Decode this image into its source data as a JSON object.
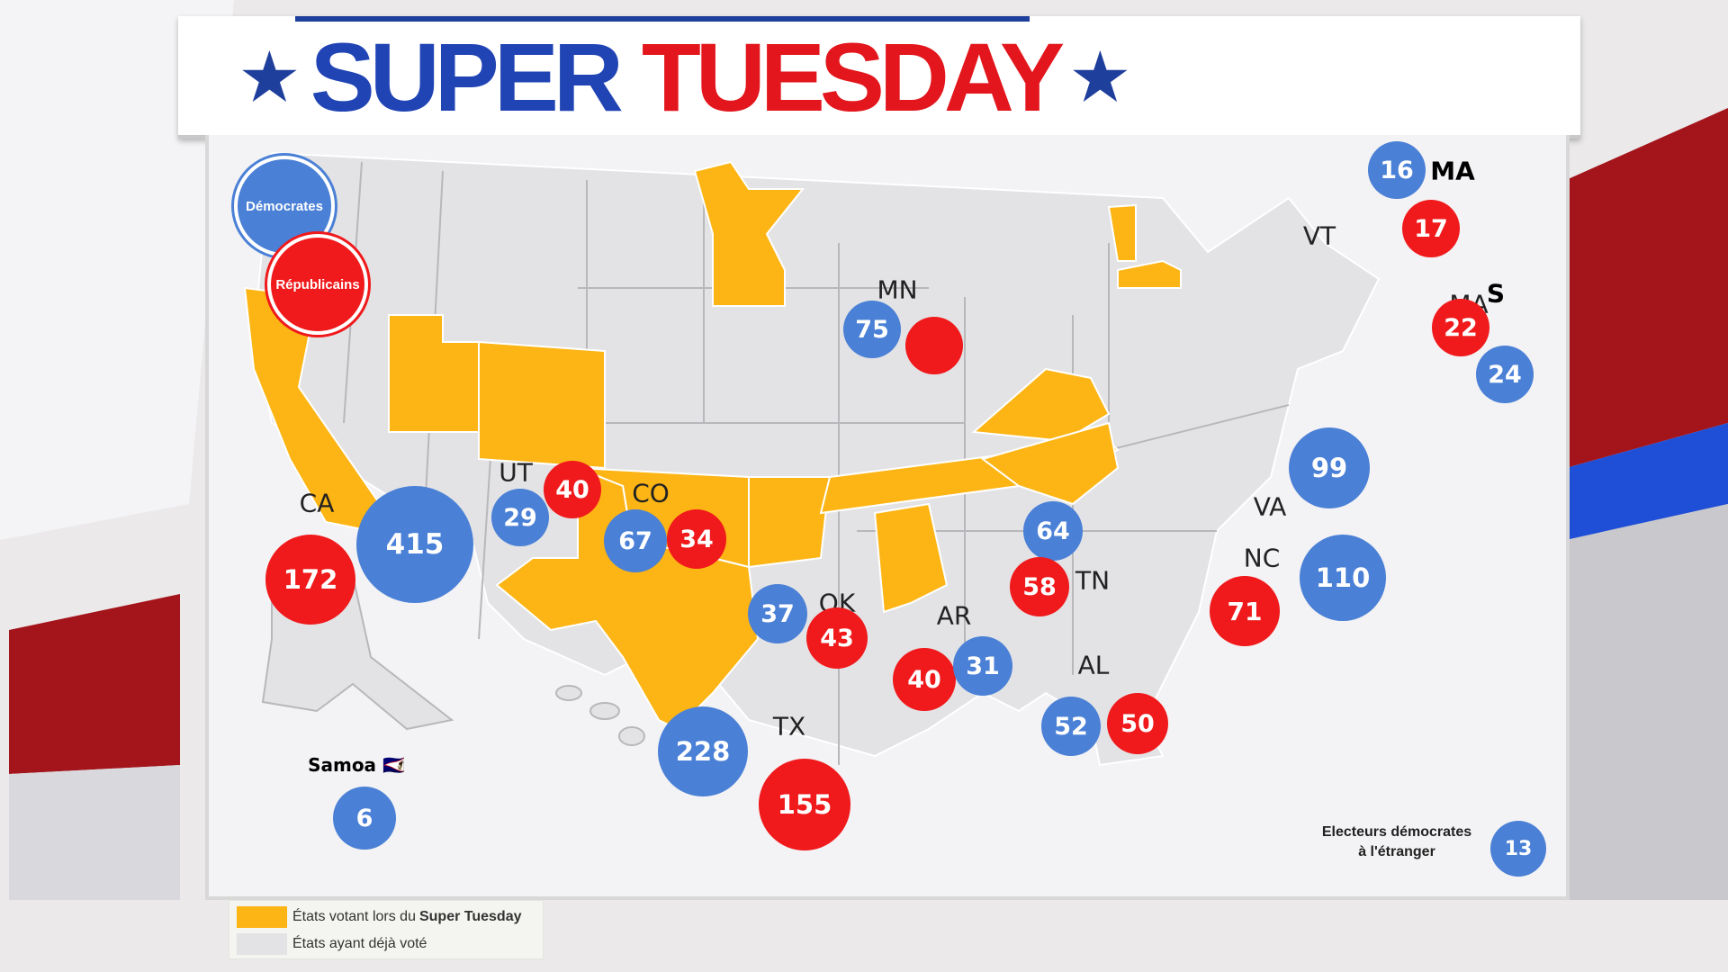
{
  "header": {
    "title_part1": "SUPER",
    "title_part2": "TUESDAY",
    "colors": {
      "blue": "#2144b5",
      "red": "#e2161c"
    }
  },
  "map_legend": {
    "democrats_label": "Démocrates",
    "republicans_label": "Républicains",
    "colors": {
      "voting": "#fdb515",
      "already_voted": "#e3e3e5",
      "dem": "#4a80d6",
      "rep": "#f0191b"
    }
  },
  "state_labels": {
    "MA_top": "MA",
    "VT": "VT",
    "MA_small": "MA",
    "S_mark": "S",
    "MN": "MN",
    "UT": "UT",
    "CO": "CO",
    "CA": "CA",
    "VA": "VA",
    "TN": "TN",
    "NC": "NC",
    "OK": "OK",
    "AR": "AR",
    "AL": "AL",
    "TX": "TX",
    "Samoa": "Samoa 🇦🇸"
  },
  "delegates": {
    "MA_dem_a": "16",
    "MA_rep_a": "17",
    "MA_rep_b": "22",
    "MA_dem_b": "24",
    "MN_dem": "75",
    "MN_rep": "",
    "UT_dem": "29",
    "UT_rep": "40",
    "CO_dem": "67",
    "CO_rep": "34",
    "CA_dem": "415",
    "CA_rep": "172",
    "VA_dem": "99",
    "TN_dem": "64",
    "TN_rep": "58",
    "NC_dem": "110",
    "NC_rep": "71",
    "OK_dem": "37",
    "OK_rep": "43",
    "AR_rep": "40",
    "AR_dem": "31",
    "AL_dem": "52",
    "AL_rep": "50",
    "TX_dem": "228",
    "TX_rep": "155",
    "Samoa_dem": "6",
    "abroad_dem": "13"
  },
  "abroad": {
    "line1": "Electeurs démocrates",
    "line2": "à l'étranger"
  },
  "bottom_legend": {
    "voting_prefix": "États votant lors du",
    "voting_bold": "Super Tuesday",
    "already_voted": "États ayant déjà voté"
  }
}
